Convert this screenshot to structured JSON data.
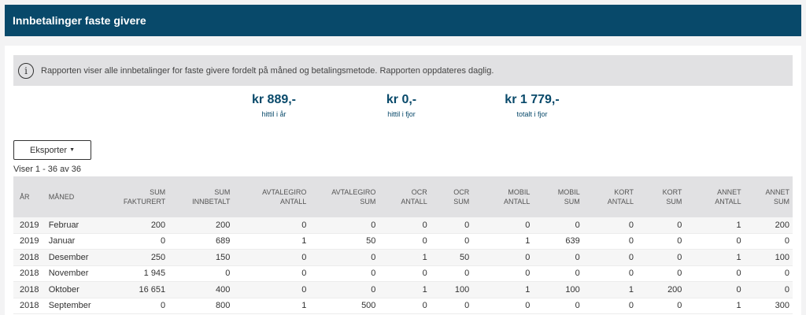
{
  "header": {
    "title": "Innbetalinger faste givere"
  },
  "info": {
    "icon": "info-icon",
    "text": "Rapporten viser alle innbetalinger for faste givere fordelt på måned og betalingsmetode. Rapporten oppdateres daglig."
  },
  "stats": [
    {
      "value": "kr 889,-",
      "label": "hittil i år"
    },
    {
      "value": "kr 0,-",
      "label": "hittil i fjor"
    },
    {
      "value": "kr 1 779,-",
      "label": "totalt i fjor"
    }
  ],
  "export": {
    "label": "Eksporter"
  },
  "count_text": "Viser 1 - 36 av 36",
  "table": {
    "headers": [
      [
        "ÅR"
      ],
      [
        "MÅNED"
      ],
      [
        "SUM",
        "FAKTURERT"
      ],
      [
        "SUM",
        "INNBETALT"
      ],
      [
        "AVTALEGIRO",
        "ANTALL"
      ],
      [
        "AVTALEGIRO",
        "SUM"
      ],
      [
        "OCR",
        "ANTALL"
      ],
      [
        "OCR",
        "SUM"
      ],
      [
        "MOBIL",
        "ANTALL"
      ],
      [
        "MOBIL",
        "SUM"
      ],
      [
        "KORT",
        "ANTALL"
      ],
      [
        "KORT",
        "SUM"
      ],
      [
        "ANNET",
        "ANTALL"
      ],
      [
        "ANNET",
        "SUM"
      ]
    ],
    "rows": [
      [
        "2019",
        "Februar",
        "200",
        "200",
        "0",
        "0",
        "0",
        "0",
        "0",
        "0",
        "0",
        "0",
        "1",
        "200"
      ],
      [
        "2019",
        "Januar",
        "0",
        "689",
        "1",
        "50",
        "0",
        "0",
        "1",
        "639",
        "0",
        "0",
        "0",
        "0"
      ],
      [
        "2018",
        "Desember",
        "250",
        "150",
        "0",
        "0",
        "1",
        "50",
        "0",
        "0",
        "0",
        "0",
        "1",
        "100"
      ],
      [
        "2018",
        "November",
        "1 945",
        "0",
        "0",
        "0",
        "0",
        "0",
        "0",
        "0",
        "0",
        "0",
        "0",
        "0"
      ],
      [
        "2018",
        "Oktober",
        "16 651",
        "400",
        "0",
        "0",
        "1",
        "100",
        "1",
        "100",
        "1",
        "200",
        "0",
        "0"
      ],
      [
        "2018",
        "September",
        "0",
        "800",
        "1",
        "500",
        "0",
        "0",
        "0",
        "0",
        "0",
        "0",
        "1",
        "300"
      ]
    ]
  }
}
